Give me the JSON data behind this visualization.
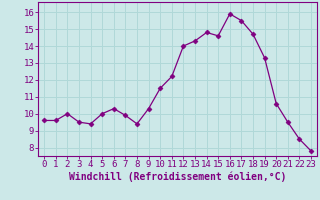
{
  "x": [
    0,
    1,
    2,
    3,
    4,
    5,
    6,
    7,
    8,
    9,
    10,
    11,
    12,
    13,
    14,
    15,
    16,
    17,
    18,
    19,
    20,
    21,
    22,
    23
  ],
  "y": [
    9.6,
    9.6,
    10.0,
    9.5,
    9.4,
    10.0,
    10.3,
    9.9,
    9.4,
    10.3,
    11.5,
    12.2,
    14.0,
    14.3,
    14.8,
    14.6,
    15.9,
    15.5,
    14.7,
    13.3,
    10.6,
    9.5,
    8.5,
    7.8
  ],
  "line_color": "#800080",
  "marker": "D",
  "marker_size": 2.5,
  "bg_color": "#cce8e8",
  "grid_color": "#b0d8d8",
  "xlabel": "Windchill (Refroidissement éolien,°C)",
  "ylim": [
    7.5,
    16.6
  ],
  "yticks": [
    8,
    9,
    10,
    11,
    12,
    13,
    14,
    15,
    16
  ],
  "xticks": [
    0,
    1,
    2,
    3,
    4,
    5,
    6,
    7,
    8,
    9,
    10,
    11,
    12,
    13,
    14,
    15,
    16,
    17,
    18,
    19,
    20,
    21,
    22,
    23
  ],
  "axis_color": "#800080",
  "tick_color": "#800080",
  "label_fontsize": 7,
  "tick_fontsize": 6.5
}
